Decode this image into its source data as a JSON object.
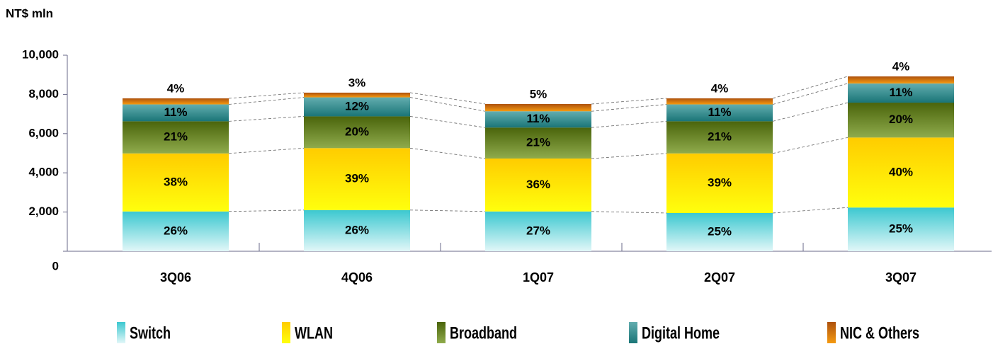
{
  "chart_data": {
    "type": "stacked_bar",
    "y_label": "NT$ mln",
    "categories": [
      "3Q06",
      "4Q06",
      "1Q07",
      "2Q07",
      "3Q07"
    ],
    "series": [
      {
        "name": "Switch",
        "color": "#3cc8d0",
        "values": [
          2030,
          2100,
          2030,
          1950,
          2230
        ],
        "labels": [
          "26%",
          "26%",
          "27%",
          "25%",
          "25%"
        ]
      },
      {
        "name": "WLAN",
        "color": "#ffcc00",
        "values": [
          2960,
          3160,
          2700,
          3040,
          3570
        ],
        "labels": [
          "38%",
          "39%",
          "36%",
          "39%",
          "40%"
        ]
      },
      {
        "name": "Broadband",
        "color": "#6a8f10",
        "values": [
          1640,
          1620,
          1580,
          1640,
          1780
        ],
        "labels": [
          "21%",
          "20%",
          "21%",
          "21%",
          "20%"
        ]
      },
      {
        "name": "Digital Home",
        "color": "#1e8a8c",
        "values": [
          860,
          970,
          830,
          860,
          980
        ],
        "labels": [
          "11%",
          "12%",
          "11%",
          "11%",
          "11%"
        ]
      },
      {
        "name": "NIC & Others",
        "color": "#f59a10",
        "values": [
          310,
          240,
          370,
          310,
          360
        ],
        "labels": [
          "4%",
          "3%",
          "5%",
          "4%",
          "4%"
        ]
      }
    ],
    "ylim": [
      0,
      10000
    ],
    "yticks": [
      0,
      {
        "value": 2000,
        "label": "2,000"
      },
      {
        "value": 4000,
        "label": "4,000"
      },
      {
        "value": 6000,
        "label": "6,000"
      },
      {
        "value": 8000,
        "label": "8,000"
      },
      {
        "value": 10000,
        "label": "10,000"
      }
    ],
    "grid": false
  }
}
